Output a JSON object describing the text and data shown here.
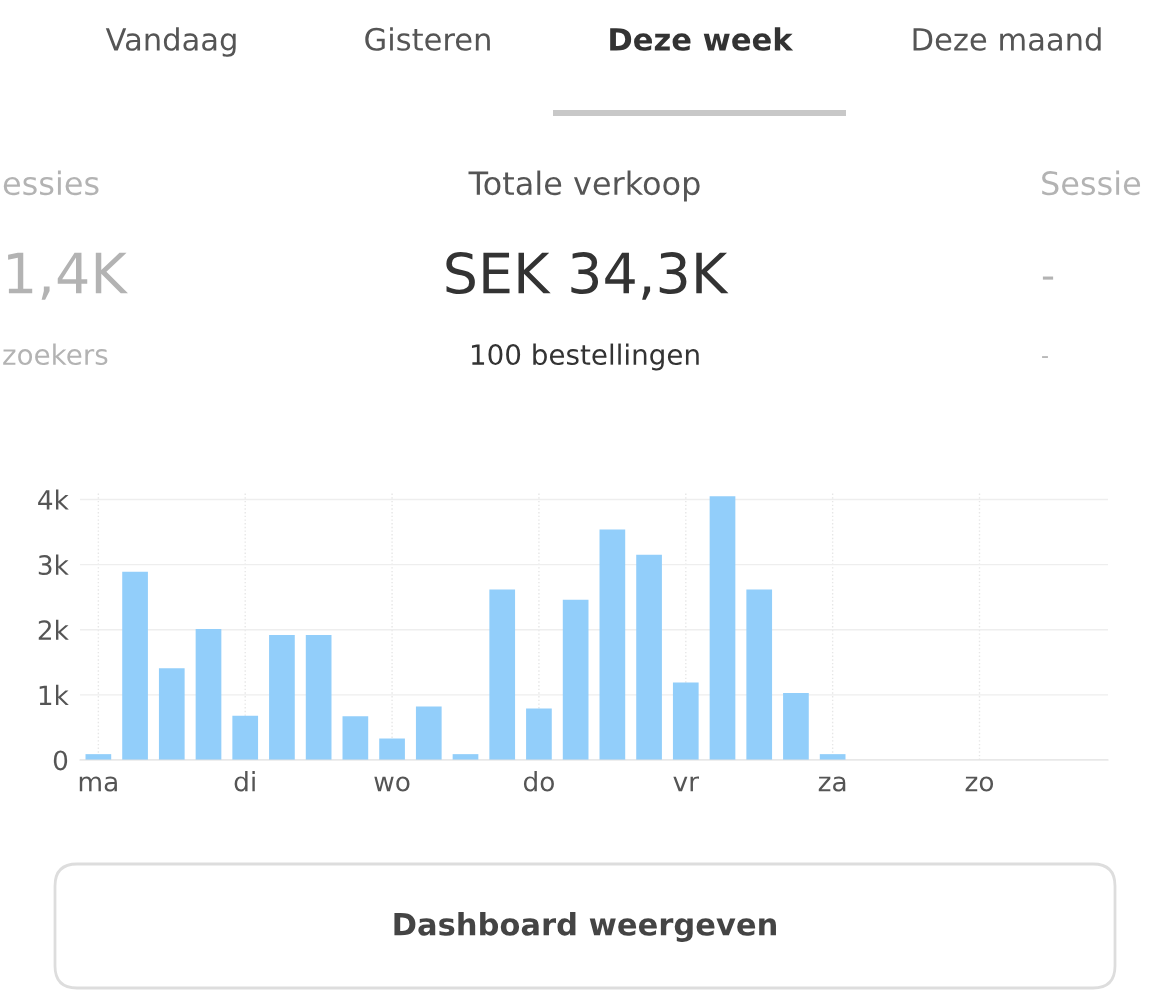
{
  "chart_data": [
    {
      "type": "other",
      "annotations": [
        "Vandaag",
        "Gisteren",
        "Deze week",
        "Deze maand",
        "essies",
        "Totale verkoop",
        "Sessie",
        "1,4K",
        "SEK 34,3K",
        "-",
        "zoekers",
        "100 bestellingen",
        "-",
        "Dashboard weergeven"
      ]
    },
    {
      "type": "bar",
      "categories": [
        "ma",
        null,
        null,
        null,
        "di",
        null,
        null,
        null,
        "wo",
        null,
        null,
        null,
        "do",
        null,
        null,
        null,
        "vr",
        null,
        null,
        null,
        "za",
        null,
        null,
        null,
        "zo",
        null,
        null,
        null
      ],
      "values": [
        0.09,
        2.89,
        1.41,
        2.01,
        0.68,
        1.92,
        1.92,
        0.67,
        0.33,
        0.82,
        0.09,
        2.62,
        0.79,
        2.46,
        3.54,
        3.15,
        1.19,
        4.05,
        2.62,
        1.03,
        0.09,
        null,
        null,
        null,
        null,
        null,
        null,
        null
      ],
      "color": "#92cefa",
      "ylim": [
        0,
        4.1
      ],
      "yticks": [
        0,
        {
          "value": 1,
          "label": "1k"
        },
        {
          "value": 2,
          "label": "2k"
        },
        {
          "value": 3,
          "label": "3k"
        },
        {
          "value": 4,
          "label": "4k"
        }
      ],
      "grid": true
    }
  ]
}
